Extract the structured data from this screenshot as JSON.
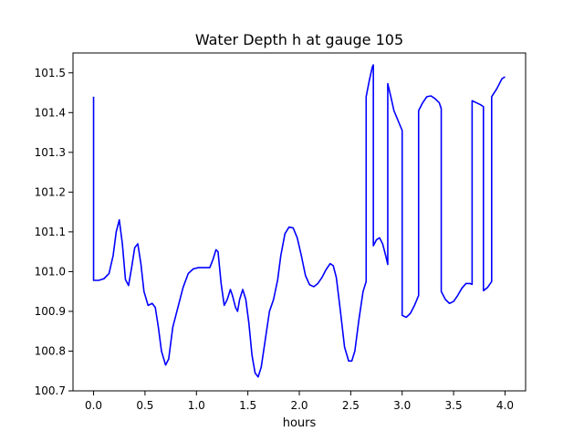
{
  "chart_data": {
    "type": "line",
    "title": "Water Depth h at gauge 105",
    "xlabel": "hours",
    "ylabel": "",
    "xlim": [
      -0.2,
      4.2
    ],
    "ylim": [
      100.7,
      101.55
    ],
    "xticks": [
      0.0,
      0.5,
      1.0,
      1.5,
      2.0,
      2.5,
      3.0,
      3.5,
      4.0
    ],
    "xtick_labels": [
      "0.0",
      "0.5",
      "1.0",
      "1.5",
      "2.0",
      "2.5",
      "3.0",
      "3.5",
      "4.0"
    ],
    "yticks": [
      100.7,
      100.8,
      100.9,
      101.0,
      101.1,
      101.2,
      101.3,
      101.4,
      101.5
    ],
    "ytick_labels": [
      "100.7",
      "100.8",
      "100.9",
      "101.0",
      "101.1",
      "101.2",
      "101.3",
      "101.4",
      "101.5"
    ],
    "grid": false,
    "series": [
      {
        "color": "#0000ff",
        "points": [
          [
            0.0,
            101.44
          ],
          [
            0.0,
            100.978
          ],
          [
            0.05,
            100.978
          ],
          [
            0.1,
            100.982
          ],
          [
            0.15,
            100.995
          ],
          [
            0.19,
            101.04
          ],
          [
            0.22,
            101.1
          ],
          [
            0.25,
            101.13
          ],
          [
            0.28,
            101.07
          ],
          [
            0.31,
            100.98
          ],
          [
            0.34,
            100.965
          ],
          [
            0.37,
            101.01
          ],
          [
            0.4,
            101.06
          ],
          [
            0.43,
            101.07
          ],
          [
            0.46,
            101.02
          ],
          [
            0.49,
            100.95
          ],
          [
            0.53,
            100.915
          ],
          [
            0.57,
            100.92
          ],
          [
            0.6,
            100.91
          ],
          [
            0.63,
            100.86
          ],
          [
            0.66,
            100.8
          ],
          [
            0.7,
            100.765
          ],
          [
            0.73,
            100.78
          ],
          [
            0.77,
            100.86
          ],
          [
            0.82,
            100.91
          ],
          [
            0.87,
            100.96
          ],
          [
            0.92,
            100.995
          ],
          [
            0.97,
            101.007
          ],
          [
            1.02,
            101.01
          ],
          [
            1.08,
            101.01
          ],
          [
            1.13,
            101.01
          ],
          [
            1.16,
            101.03
          ],
          [
            1.19,
            101.055
          ],
          [
            1.21,
            101.05
          ],
          [
            1.24,
            100.97
          ],
          [
            1.27,
            100.915
          ],
          [
            1.3,
            100.93
          ],
          [
            1.33,
            100.955
          ],
          [
            1.35,
            100.94
          ],
          [
            1.38,
            100.91
          ],
          [
            1.4,
            100.9
          ],
          [
            1.42,
            100.93
          ],
          [
            1.45,
            100.955
          ],
          [
            1.48,
            100.93
          ],
          [
            1.51,
            100.87
          ],
          [
            1.54,
            100.79
          ],
          [
            1.57,
            100.745
          ],
          [
            1.6,
            100.735
          ],
          [
            1.63,
            100.76
          ],
          [
            1.67,
            100.83
          ],
          [
            1.71,
            100.9
          ],
          [
            1.75,
            100.93
          ],
          [
            1.79,
            100.98
          ],
          [
            1.82,
            101.04
          ],
          [
            1.86,
            101.095
          ],
          [
            1.9,
            101.112
          ],
          [
            1.94,
            101.11
          ],
          [
            1.98,
            101.085
          ],
          [
            2.02,
            101.04
          ],
          [
            2.06,
            100.99
          ],
          [
            2.1,
            100.967
          ],
          [
            2.14,
            100.962
          ],
          [
            2.18,
            100.97
          ],
          [
            2.22,
            100.985
          ],
          [
            2.26,
            101.005
          ],
          [
            2.3,
            101.02
          ],
          [
            2.33,
            101.015
          ],
          [
            2.36,
            100.985
          ],
          [
            2.4,
            100.9
          ],
          [
            2.44,
            100.81
          ],
          [
            2.48,
            100.775
          ],
          [
            2.51,
            100.775
          ],
          [
            2.54,
            100.8
          ],
          [
            2.58,
            100.88
          ],
          [
            2.62,
            100.95
          ],
          [
            2.65,
            100.975
          ],
          [
            2.65,
            101.44
          ],
          [
            2.68,
            101.48
          ],
          [
            2.71,
            101.515
          ],
          [
            2.72,
            101.52
          ],
          [
            2.72,
            101.065
          ],
          [
            2.75,
            101.08
          ],
          [
            2.78,
            101.085
          ],
          [
            2.81,
            101.07
          ],
          [
            2.84,
            101.04
          ],
          [
            2.86,
            101.018
          ],
          [
            2.86,
            101.473
          ],
          [
            2.89,
            101.44
          ],
          [
            2.92,
            101.405
          ],
          [
            2.96,
            101.38
          ],
          [
            3.0,
            101.355
          ],
          [
            3.0,
            100.89
          ],
          [
            3.04,
            100.885
          ],
          [
            3.08,
            100.895
          ],
          [
            3.12,
            100.915
          ],
          [
            3.16,
            100.94
          ],
          [
            3.16,
            101.405
          ],
          [
            3.2,
            101.425
          ],
          [
            3.24,
            101.44
          ],
          [
            3.28,
            101.442
          ],
          [
            3.32,
            101.435
          ],
          [
            3.36,
            101.425
          ],
          [
            3.38,
            101.41
          ],
          [
            3.38,
            100.95
          ],
          [
            3.42,
            100.93
          ],
          [
            3.46,
            100.92
          ],
          [
            3.5,
            100.925
          ],
          [
            3.54,
            100.94
          ],
          [
            3.58,
            100.958
          ],
          [
            3.62,
            100.97
          ],
          [
            3.66,
            100.97
          ],
          [
            3.68,
            100.968
          ],
          [
            3.68,
            101.43
          ],
          [
            3.72,
            101.425
          ],
          [
            3.76,
            101.42
          ],
          [
            3.79,
            101.415
          ],
          [
            3.79,
            100.952
          ],
          [
            3.83,
            100.96
          ],
          [
            3.87,
            100.975
          ],
          [
            3.87,
            101.44
          ],
          [
            3.92,
            101.46
          ],
          [
            3.97,
            101.485
          ],
          [
            4.0,
            101.49
          ]
        ]
      }
    ]
  }
}
